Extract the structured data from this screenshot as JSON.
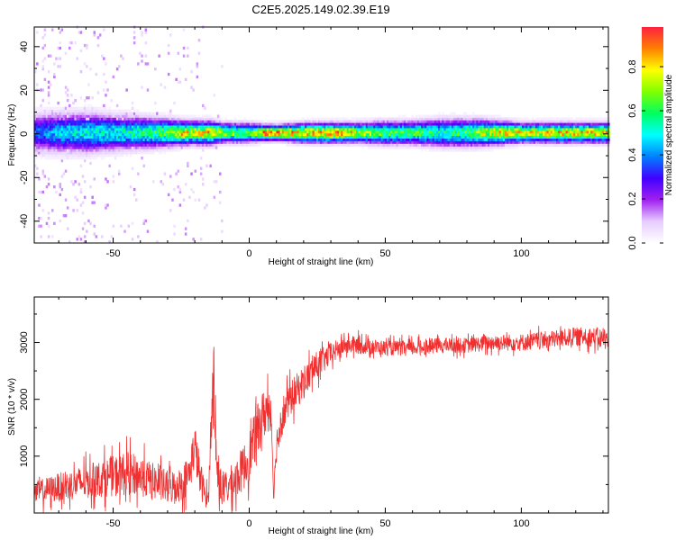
{
  "title": "C2E5.2025.149.02.39.E19",
  "chart_data": [
    {
      "type": "heatmap",
      "xlabel": "Height of straight line (km)",
      "ylabel": "Frequency (Hz)",
      "xlim": [
        -79,
        132
      ],
      "ylim": [
        -50,
        49
      ],
      "xticks": [
        -50,
        0,
        50,
        100
      ],
      "yticks": [
        -40,
        -20,
        0,
        20,
        40
      ],
      "colorbar": {
        "label": "Normalized spectral amplitude",
        "range": [
          0,
          0.98
        ],
        "ticks": [
          "0.0",
          "0.2",
          "0.4",
          "0.6",
          "0.8"
        ],
        "colors": [
          "#ffffff",
          "#e6ccff",
          "#a020f0",
          "#4000ff",
          "#0080ff",
          "#00ffff",
          "#00ff60",
          "#80ff00",
          "#ffff00",
          "#ff8000",
          "#ff2040"
        ]
      },
      "ridge": [
        {
          "x": -79,
          "amp": 0.35,
          "width": 5
        },
        {
          "x": -70,
          "amp": 0.45,
          "width": 5
        },
        {
          "x": -60,
          "amp": 0.5,
          "width": 5
        },
        {
          "x": -50,
          "amp": 0.5,
          "width": 4.5
        },
        {
          "x": -40,
          "amp": 0.55,
          "width": 4
        },
        {
          "x": -30,
          "amp": 0.65,
          "width": 3.5
        },
        {
          "x": -25,
          "amp": 0.8,
          "width": 3
        },
        {
          "x": -20,
          "amp": 0.75,
          "width": 3
        },
        {
          "x": -15,
          "amp": 0.8,
          "width": 3
        },
        {
          "x": -10,
          "amp": 0.7,
          "width": 2.5
        },
        {
          "x": 0,
          "amp": 0.6,
          "width": 2.5
        },
        {
          "x": 5,
          "amp": 0.9,
          "width": 2
        },
        {
          "x": 10,
          "amp": 0.85,
          "width": 2
        },
        {
          "x": 20,
          "amp": 0.8,
          "width": 2.5
        },
        {
          "x": 30,
          "amp": 0.85,
          "width": 2.5
        },
        {
          "x": 40,
          "amp": 0.75,
          "width": 2.5
        },
        {
          "x": 50,
          "amp": 0.6,
          "width": 3
        },
        {
          "x": 60,
          "amp": 0.6,
          "width": 3
        },
        {
          "x": 70,
          "amp": 0.55,
          "width": 3.5
        },
        {
          "x": 80,
          "amp": 0.6,
          "width": 3.5
        },
        {
          "x": 90,
          "amp": 0.8,
          "width": 3
        },
        {
          "x": 100,
          "amp": 0.75,
          "width": 2.5
        },
        {
          "x": 110,
          "amp": 0.8,
          "width": 2.5
        },
        {
          "x": 120,
          "amp": 0.8,
          "width": 2.5
        },
        {
          "x": 132,
          "amp": 0.8,
          "width": 2.5
        }
      ]
    },
    {
      "type": "line",
      "xlabel": "Height of straight line (km)",
      "ylabel": "SNR (10 * v/v)",
      "xlim": [
        -79,
        132
      ],
      "ylim": [
        0,
        3800
      ],
      "xticks": [
        -50,
        0,
        50,
        100
      ],
      "yticks": [
        1000,
        2000,
        3000
      ],
      "color": "#f03030",
      "x": [
        -79,
        -75,
        -70,
        -65,
        -60,
        -55,
        -50,
        -45,
        -40,
        -35,
        -30,
        -25,
        -22,
        -20,
        -18,
        -16,
        -15,
        -14,
        -13,
        -12,
        -10,
        -8,
        -5,
        -2,
        0,
        2,
        4,
        6,
        8,
        9,
        10,
        12,
        15,
        20,
        25,
        30,
        35,
        40,
        50,
        60,
        70,
        80,
        90,
        100,
        110,
        120,
        126,
        132
      ],
      "y": [
        350,
        400,
        450,
        500,
        550,
        600,
        650,
        700,
        650,
        550,
        450,
        500,
        700,
        1200,
        600,
        300,
        250,
        1600,
        2500,
        800,
        400,
        450,
        600,
        800,
        1000,
        1300,
        1600,
        1800,
        1900,
        300,
        1200,
        1700,
        2000,
        2300,
        2600,
        2800,
        2950,
        2950,
        2900,
        2900,
        2950,
        2950,
        3000,
        3000,
        3050,
        3100,
        3100,
        3050
      ],
      "noise": [
        200,
        220,
        250,
        270,
        300,
        320,
        350,
        380,
        350,
        320,
        300,
        300,
        350,
        400,
        350,
        200,
        150,
        400,
        600,
        400,
        300,
        300,
        350,
        400,
        450,
        450,
        450,
        450,
        400,
        100,
        300,
        350,
        300,
        300,
        250,
        200,
        150,
        150,
        130,
        130,
        130,
        130,
        140,
        150,
        150,
        160,
        170,
        170
      ]
    }
  ]
}
